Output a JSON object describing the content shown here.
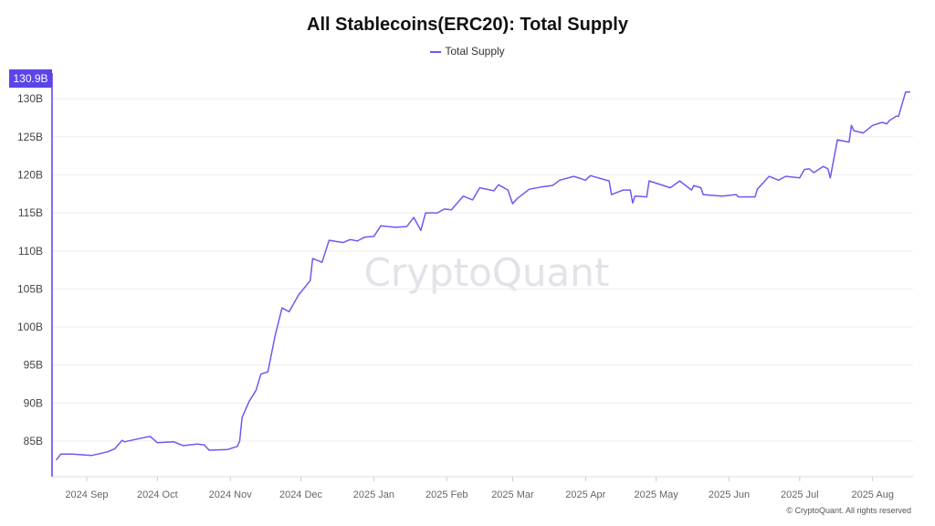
{
  "chart_data": {
    "type": "line",
    "title": "All Stablecoins(ERC20): Total Supply",
    "xlabel": "",
    "ylabel": "",
    "legend": {
      "placement": "top-center",
      "entries": [
        "Total Supply"
      ]
    },
    "grid": {
      "horizontal": true,
      "vertical": false
    },
    "ylim": [
      82,
      132
    ],
    "y_unit": "B",
    "y_ticks": [
      "85B",
      "90B",
      "95B",
      "100B",
      "105B",
      "110B",
      "115B",
      "120B",
      "125B",
      "130B"
    ],
    "y_tick_values": [
      85,
      90,
      95,
      100,
      105,
      110,
      115,
      120,
      125,
      130
    ],
    "x_ticks": [
      "2024 Sep",
      "2024 Oct",
      "2024 Nov",
      "2024 Dec",
      "2025 Jan",
      "2025 Feb",
      "2025 Mar",
      "2025 Apr",
      "2025 May",
      "2025 Jun",
      "2025 Jul",
      "2025 Aug"
    ],
    "x_tick_dates": [
      "2024-09-01",
      "2024-10-01",
      "2024-11-01",
      "2024-12-01",
      "2025-01-01",
      "2025-02-01",
      "2025-03-01",
      "2025-04-01",
      "2025-05-01",
      "2025-06-01",
      "2025-07-01",
      "2025-08-01"
    ],
    "last_value_label": "130.9B",
    "series": [
      {
        "name": "Total Supply",
        "color": "#6b5bf0",
        "points": [
          [
            "2024-08-19",
            82.5
          ],
          [
            "2024-08-21",
            83.3
          ],
          [
            "2024-08-26",
            83.3
          ],
          [
            "2024-09-03",
            83.1
          ],
          [
            "2024-09-10",
            83.6
          ],
          [
            "2024-09-13",
            84.0
          ],
          [
            "2024-09-16",
            85.1
          ],
          [
            "2024-09-17",
            84.9
          ],
          [
            "2024-09-26",
            85.5
          ],
          [
            "2024-09-28",
            85.6
          ],
          [
            "2024-10-01",
            84.8
          ],
          [
            "2024-10-08",
            84.9
          ],
          [
            "2024-10-12",
            84.4
          ],
          [
            "2024-10-18",
            84.6
          ],
          [
            "2024-10-21",
            84.5
          ],
          [
            "2024-10-23",
            83.8
          ],
          [
            "2024-10-31",
            83.9
          ],
          [
            "2024-11-04",
            84.3
          ],
          [
            "2024-11-05",
            85.0
          ],
          [
            "2024-11-06",
            88.1
          ],
          [
            "2024-11-09",
            90.2
          ],
          [
            "2024-11-12",
            91.7
          ],
          [
            "2024-11-14",
            93.8
          ],
          [
            "2024-11-17",
            94.1
          ],
          [
            "2024-11-20",
            98.8
          ],
          [
            "2024-11-23",
            102.5
          ],
          [
            "2024-11-26",
            102.0
          ],
          [
            "2024-11-30",
            104.2
          ],
          [
            "2024-12-05",
            106.1
          ],
          [
            "2024-12-06",
            109.0
          ],
          [
            "2024-12-10",
            108.5
          ],
          [
            "2024-12-13",
            111.4
          ],
          [
            "2024-12-19",
            111.1
          ],
          [
            "2024-12-22",
            111.5
          ],
          [
            "2024-12-25",
            111.3
          ],
          [
            "2024-12-28",
            111.8
          ],
          [
            "2025-01-01",
            111.9
          ],
          [
            "2025-01-04",
            113.3
          ],
          [
            "2025-01-10",
            113.1
          ],
          [
            "2025-01-15",
            113.2
          ],
          [
            "2025-01-18",
            114.4
          ],
          [
            "2025-01-21",
            112.7
          ],
          [
            "2025-01-23",
            115.0
          ],
          [
            "2025-01-28",
            115.0
          ],
          [
            "2025-01-31",
            115.5
          ],
          [
            "2025-02-03",
            115.4
          ],
          [
            "2025-02-08",
            117.2
          ],
          [
            "2025-02-12",
            116.7
          ],
          [
            "2025-02-15",
            118.3
          ],
          [
            "2025-02-21",
            117.9
          ],
          [
            "2025-02-23",
            118.7
          ],
          [
            "2025-02-27",
            118.0
          ],
          [
            "2025-03-01",
            116.2
          ],
          [
            "2025-03-03",
            116.9
          ],
          [
            "2025-03-08",
            118.1
          ],
          [
            "2025-03-13",
            118.4
          ],
          [
            "2025-03-18",
            118.6
          ],
          [
            "2025-03-21",
            119.3
          ],
          [
            "2025-03-27",
            119.8
          ],
          [
            "2025-04-01",
            119.3
          ],
          [
            "2025-04-03",
            119.9
          ],
          [
            "2025-04-11",
            119.2
          ],
          [
            "2025-04-12",
            117.4
          ],
          [
            "2025-04-17",
            118.0
          ],
          [
            "2025-04-20",
            118.0
          ],
          [
            "2025-04-21",
            116.3
          ],
          [
            "2025-04-22",
            117.2
          ],
          [
            "2025-04-27",
            117.1
          ],
          [
            "2025-04-28",
            119.2
          ],
          [
            "2025-05-05",
            118.5
          ],
          [
            "2025-05-07",
            118.3
          ],
          [
            "2025-05-11",
            119.2
          ],
          [
            "2025-05-16",
            118.0
          ],
          [
            "2025-05-17",
            118.6
          ],
          [
            "2025-05-20",
            118.3
          ],
          [
            "2025-05-21",
            117.4
          ],
          [
            "2025-05-29",
            117.2
          ],
          [
            "2025-06-04",
            117.4
          ],
          [
            "2025-06-05",
            117.1
          ],
          [
            "2025-06-12",
            117.1
          ],
          [
            "2025-06-13",
            118.1
          ],
          [
            "2025-06-18",
            119.8
          ],
          [
            "2025-06-22",
            119.3
          ],
          [
            "2025-06-25",
            119.8
          ],
          [
            "2025-07-01",
            119.6
          ],
          [
            "2025-07-03",
            120.7
          ],
          [
            "2025-07-05",
            120.8
          ],
          [
            "2025-07-07",
            120.3
          ],
          [
            "2025-07-11",
            121.1
          ],
          [
            "2025-07-13",
            120.8
          ],
          [
            "2025-07-14",
            119.6
          ],
          [
            "2025-07-17",
            124.6
          ],
          [
            "2025-07-22",
            124.3
          ],
          [
            "2025-07-23",
            126.5
          ],
          [
            "2025-07-24",
            125.8
          ],
          [
            "2025-07-28",
            125.5
          ],
          [
            "2025-08-01",
            126.5
          ],
          [
            "2025-08-05",
            126.9
          ],
          [
            "2025-08-07",
            126.7
          ],
          [
            "2025-08-08",
            127.1
          ],
          [
            "2025-08-11",
            127.7
          ],
          [
            "2025-08-12",
            127.7
          ],
          [
            "2025-08-15",
            130.9
          ],
          [
            "2025-08-17",
            130.9
          ]
        ]
      }
    ]
  },
  "watermark": "CryptoQuant",
  "copyright": "© CryptoQuant. All rights reserved",
  "colors": {
    "accent": "#5b45e8",
    "line": "#6b5bf0",
    "grid": "#eeeeee",
    "axis_text": "#555555"
  }
}
